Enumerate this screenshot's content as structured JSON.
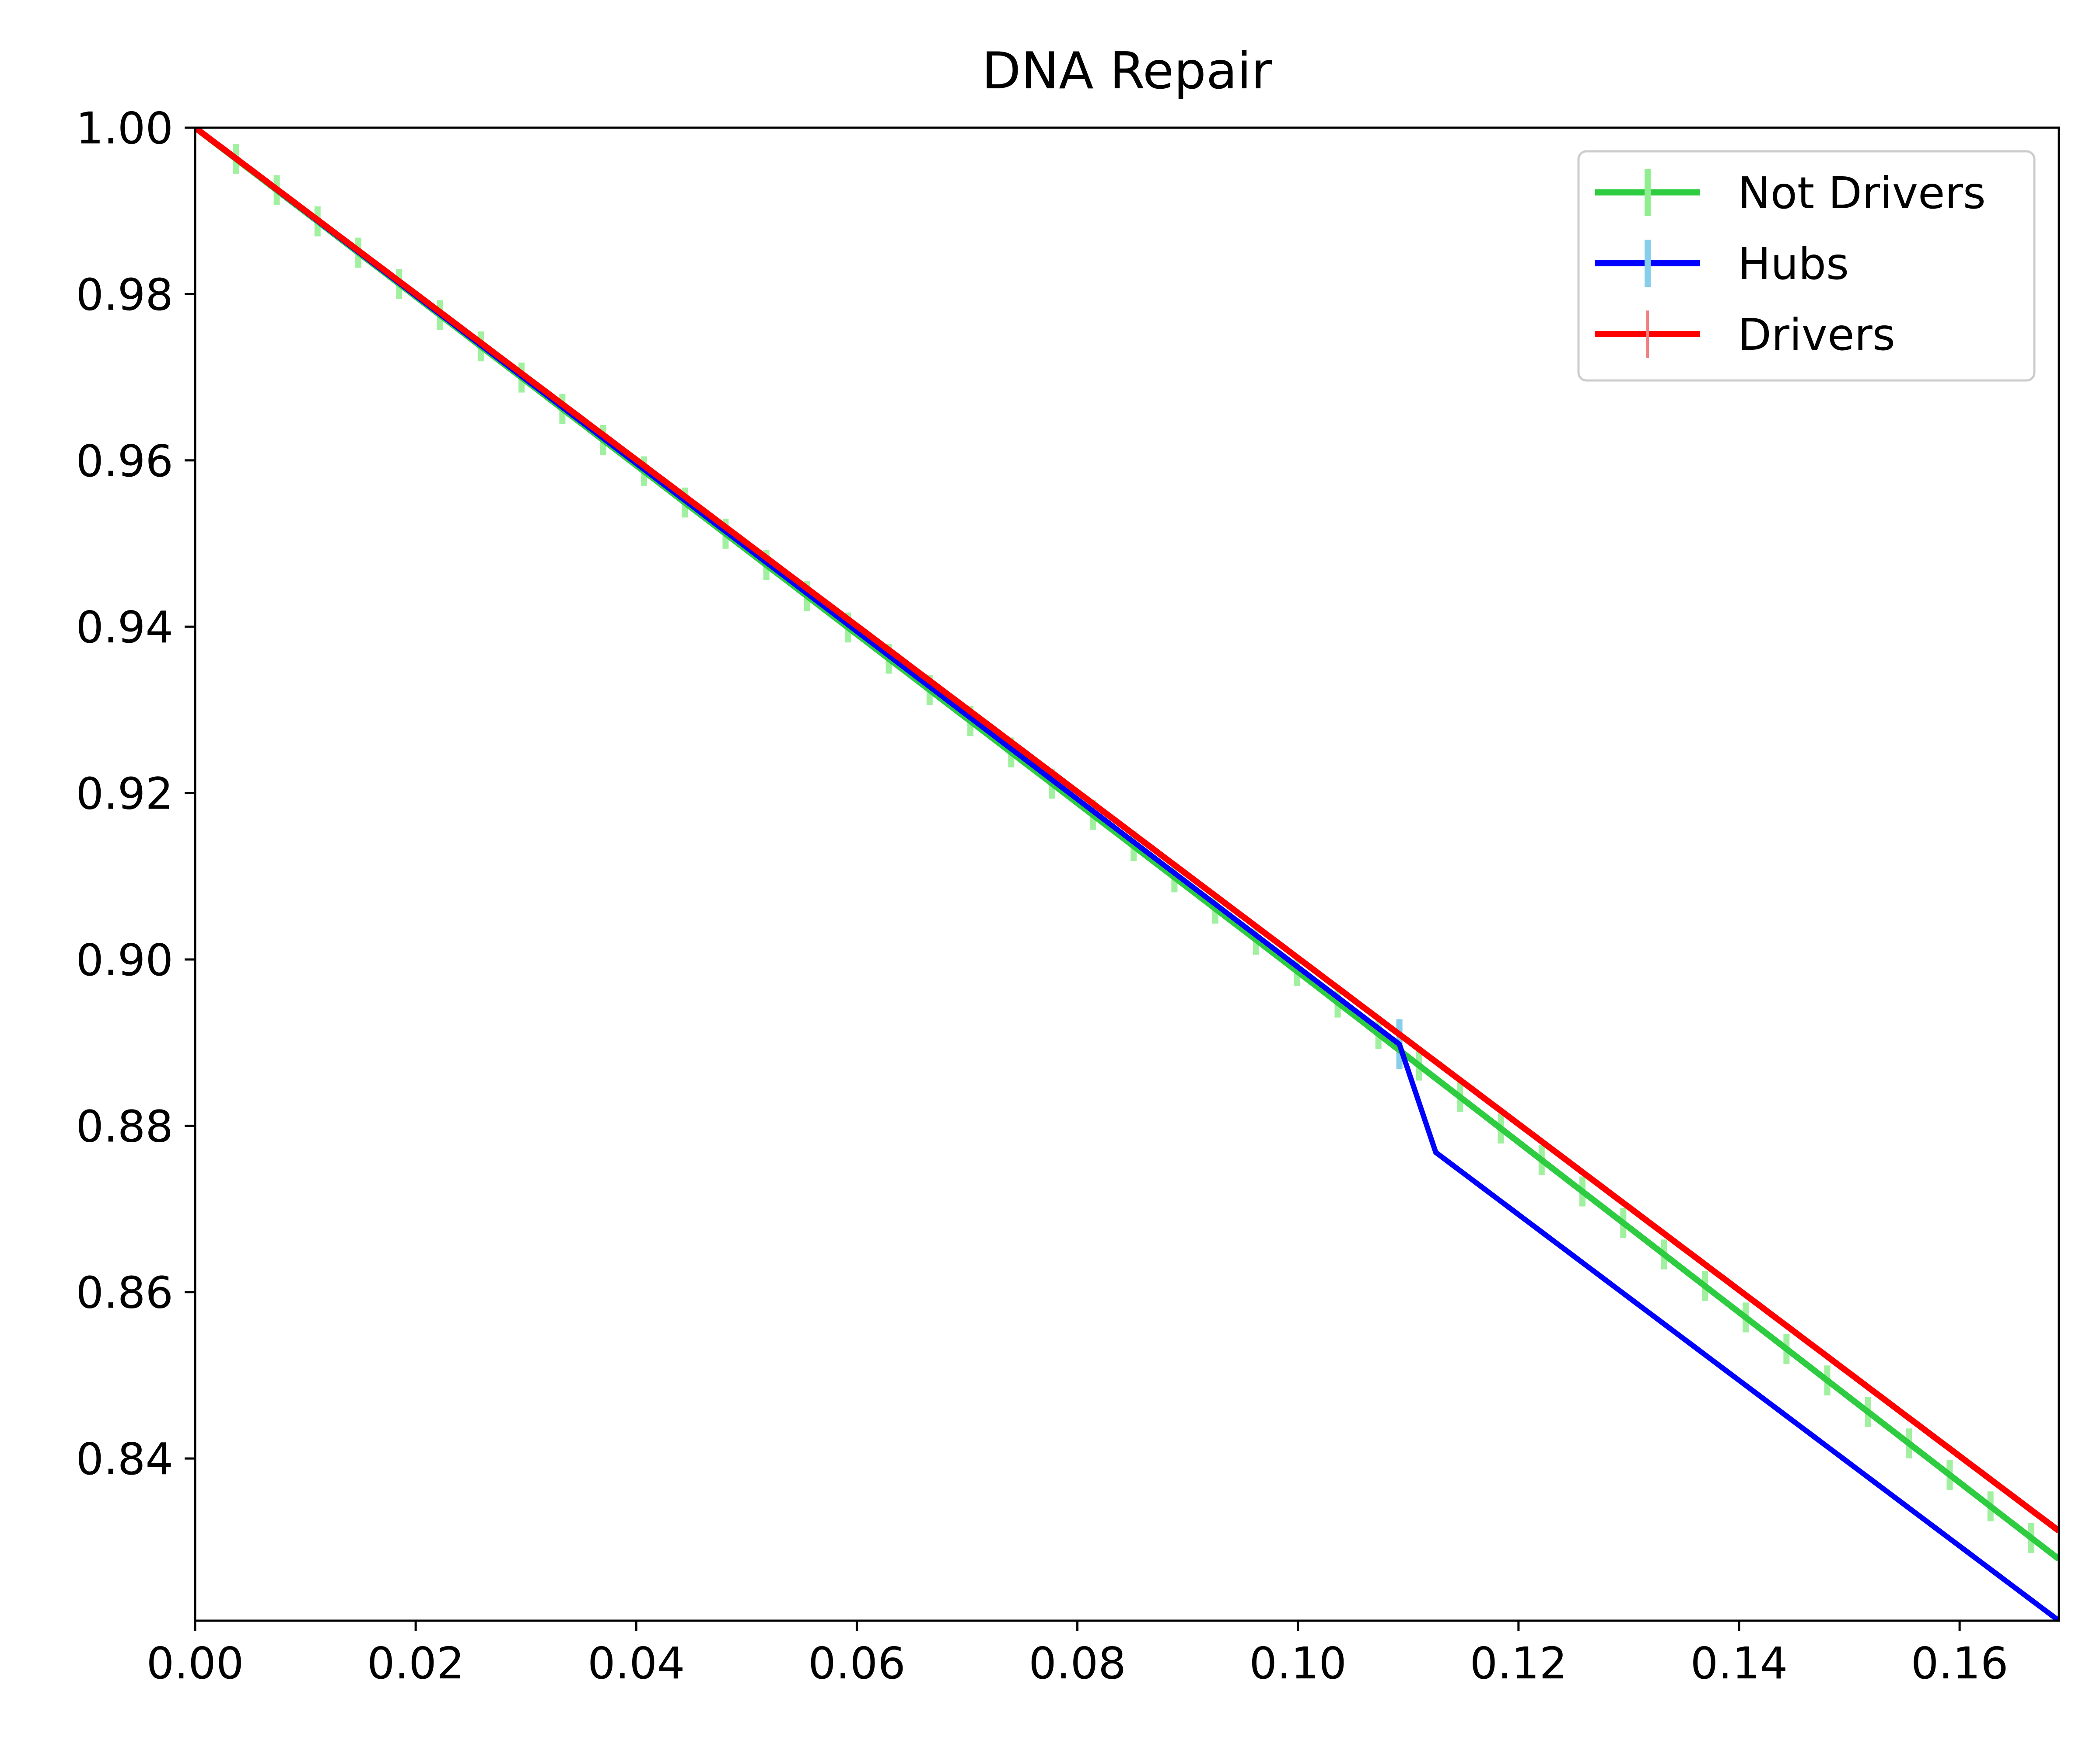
{
  "chart_data": {
    "type": "line",
    "title": "DNA Repair",
    "xlabel": "",
    "ylabel": "",
    "xlim": [
      0.0,
      0.169
    ],
    "ylim": [
      0.8205,
      1.0
    ],
    "x_ticks": [
      0.0,
      0.02,
      0.04,
      0.06,
      0.08,
      0.1,
      0.12,
      0.14,
      0.16
    ],
    "x_tick_labels": [
      "0.00",
      "0.02",
      "0.04",
      "0.06",
      "0.08",
      "0.10",
      "0.12",
      "0.14",
      "0.16"
    ],
    "y_ticks": [
      0.84,
      0.86,
      0.88,
      0.9,
      0.92,
      0.94,
      0.96,
      0.98,
      1.0
    ],
    "y_tick_labels": [
      "0.84",
      "0.86",
      "0.88",
      "0.90",
      "0.92",
      "0.94",
      "0.96",
      "0.98",
      "1.00"
    ],
    "grid": false,
    "legend_position": "top-right",
    "series": [
      {
        "name": "Not Drivers",
        "color": "#2ecc40",
        "errorbar_color": "#90ee90",
        "x": [
          0.0,
          0.1,
          0.169
        ],
        "y": [
          1.0,
          0.8985,
          0.8279
        ],
        "errorbar_step": 0.0037,
        "errorbar_half": 0.0018
      },
      {
        "name": "Hubs",
        "color": "#0000ff",
        "errorbar_color": "#87ceeb",
        "x": [
          0.0,
          0.1092,
          0.1125,
          0.169
        ],
        "y": [
          1.0,
          0.8898,
          0.8768,
          0.8205
        ],
        "errorbar_x": [
          0.1092
        ],
        "errorbar_half": 0.003
      },
      {
        "name": "Drivers",
        "color": "#ff0000",
        "errorbar_color": "#f08080",
        "x": [
          0.0,
          0.169
        ],
        "y": [
          1.0,
          0.8313
        ]
      }
    ]
  }
}
